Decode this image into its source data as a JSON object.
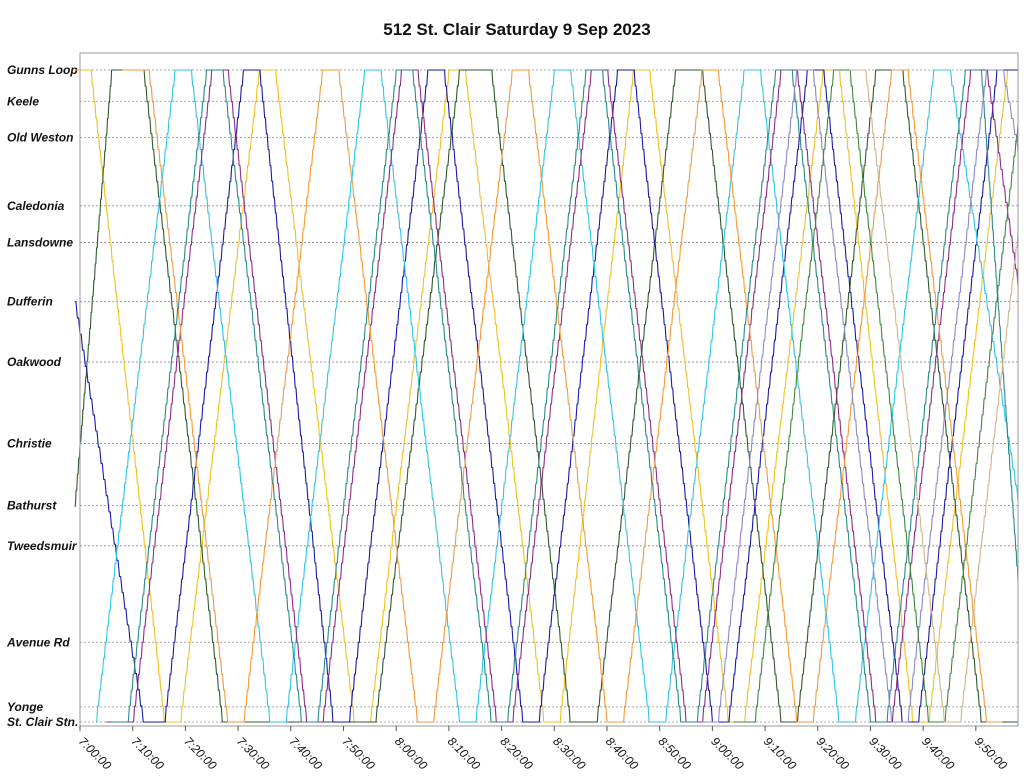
{
  "chart_data": {
    "type": "line",
    "title": "512 St. Clair Saturday 9 Sep 2023",
    "xlabel": "",
    "ylabel": "",
    "grid": "horizontal dotted lines at each stop",
    "legend": "none",
    "x_unit": "time of day (hh:mm:ss)",
    "xlim": [
      "7:00:00",
      "9:58:00"
    ],
    "x_ticks": [
      "7:00:00",
      "7:10:00",
      "7:20:00",
      "7:30:00",
      "7:40:00",
      "7:50:00",
      "8:00:00",
      "8:10:00",
      "8:20:00",
      "8:30:00",
      "8:40:00",
      "8:50:00",
      "9:00:00",
      "9:10:00",
      "9:20:00",
      "9:30:00",
      "9:40:00",
      "9:50:00"
    ],
    "stops": [
      "Gunns Loop",
      "Keele",
      "Old Weston",
      "Caledonia",
      "Lansdowne",
      "Dufferin",
      "Oakwood",
      "Christie",
      "Bathurst",
      "Tweedsmuir",
      "Avenue Rd",
      "Yonge",
      "St. Clair Stn."
    ],
    "stop_distance_km": [
      0.0,
      0.58,
      1.25,
      2.52,
      3.2,
      4.3,
      5.42,
      6.93,
      8.08,
      8.83,
      10.62,
      11.82,
      12.1
    ],
    "total_km": 12.1,
    "colors": [
      "#1a1aa8",
      "#f0c020",
      "#2ec4e6",
      "#8b2c8b",
      "#2f5a2f",
      "#f39a3a",
      "#2a8a8a",
      "#8a8ac8",
      "#3a8a3a",
      "#d2b48c"
    ],
    "series": [
      {
        "color": "#f0c020",
        "points": [
          [
            "6:59:00",
            0.0
          ],
          [
            "7:02:00",
            0.0
          ],
          [
            "7:16:00",
            12.1
          ],
          [
            "7:19:00",
            12.1
          ],
          [
            "7:34:00",
            0.0
          ],
          [
            "7:37:00",
            0.0
          ],
          [
            "7:52:00",
            12.1
          ],
          [
            "7:55:00",
            12.1
          ],
          [
            "8:10:00",
            0.0
          ],
          [
            "8:13:00",
            0.0
          ],
          [
            "8:28:00",
            12.1
          ],
          [
            "8:31:00",
            12.1
          ],
          [
            "8:45:00",
            0.0
          ],
          [
            "8:48:00",
            0.0
          ],
          [
            "9:03:00",
            12.1
          ],
          [
            "9:06:00",
            12.1
          ],
          [
            "9:21:00",
            0.0
          ],
          [
            "9:24:00",
            0.0
          ],
          [
            "9:38:00",
            12.1
          ],
          [
            "9:41:00",
            12.1
          ],
          [
            "9:56:00",
            0.0
          ],
          [
            "9:58:00",
            0.0
          ]
        ]
      },
      {
        "color": "#2f5a2f",
        "points": [
          [
            "6:59:00",
            8.1
          ],
          [
            "7:06:00",
            0.0
          ],
          [
            "7:12:00",
            0.0
          ],
          [
            "7:27:00",
            12.1
          ],
          [
            "7:32:00",
            12.1
          ],
          [
            "7:40:00",
            12.1
          ],
          [
            "7:45:00",
            12.1
          ],
          [
            "7:56:00",
            12.1
          ],
          [
            "8:12:00",
            0.0
          ],
          [
            "8:18:00",
            0.0
          ],
          [
            "8:33:00",
            12.1
          ],
          [
            "8:38:00",
            12.1
          ],
          [
            "8:53:00",
            0.0
          ],
          [
            "8:58:00",
            0.0
          ],
          [
            "9:13:00",
            12.1
          ],
          [
            "9:16:00",
            12.1
          ],
          [
            "9:31:00",
            0.0
          ],
          [
            "9:36:00",
            0.0
          ],
          [
            "9:51:00",
            12.1
          ],
          [
            "9:58:00",
            12.1
          ]
        ]
      },
      {
        "color": "#1a1aa8",
        "points": [
          [
            "6:59:00",
            4.3
          ],
          [
            "7:12:00",
            12.1
          ],
          [
            "7:16:00",
            12.1
          ],
          [
            "7:31:00",
            0.0
          ],
          [
            "7:34:00",
            0.0
          ],
          [
            "7:48:00",
            12.1
          ],
          [
            "7:51:00",
            12.1
          ],
          [
            "8:06:00",
            0.0
          ],
          [
            "8:09:00",
            0.0
          ],
          [
            "8:24:00",
            12.1
          ],
          [
            "8:27:00",
            12.1
          ],
          [
            "8:42:00",
            0.0
          ],
          [
            "8:45:00",
            0.0
          ],
          [
            "9:00:00",
            12.1
          ],
          [
            "9:03:00",
            12.1
          ],
          [
            "9:18:00",
            0.0
          ],
          [
            "9:21:00",
            0.0
          ],
          [
            "9:36:00",
            12.1
          ],
          [
            "9:39:00",
            12.1
          ],
          [
            "9:54:00",
            0.0
          ],
          [
            "9:58:00",
            0.0
          ]
        ]
      },
      {
        "color": "#2ec4e6",
        "points": [
          [
            "7:03:00",
            12.1
          ],
          [
            "7:18:00",
            0.0
          ],
          [
            "7:21:00",
            0.0
          ],
          [
            "7:36:00",
            12.1
          ],
          [
            "7:39:00",
            12.1
          ],
          [
            "7:54:00",
            0.0
          ],
          [
            "7:57:00",
            0.0
          ],
          [
            "8:12:00",
            12.1
          ],
          [
            "8:15:00",
            12.1
          ],
          [
            "8:30:00",
            0.0
          ],
          [
            "8:33:00",
            0.0
          ],
          [
            "8:48:00",
            12.1
          ],
          [
            "8:51:00",
            12.1
          ],
          [
            "9:06:00",
            0.0
          ],
          [
            "9:09:00",
            0.0
          ],
          [
            "9:24:00",
            12.1
          ],
          [
            "9:27:00",
            12.1
          ],
          [
            "9:42:00",
            0.0
          ],
          [
            "9:45:00",
            0.0
          ],
          [
            "9:58:00",
            8.0
          ]
        ]
      },
      {
        "color": "#8b2c8b",
        "points": [
          [
            "7:05:00",
            12.1
          ],
          [
            "7:10:00",
            12.1
          ],
          [
            "7:25:00",
            0.0
          ],
          [
            "7:28:00",
            0.0
          ],
          [
            "7:43:00",
            12.1
          ],
          [
            "7:46:00",
            12.1
          ],
          [
            "8:01:00",
            0.0
          ],
          [
            "8:04:00",
            0.0
          ],
          [
            "8:19:00",
            12.1
          ],
          [
            "8:22:00",
            12.1
          ],
          [
            "8:37:00",
            0.0
          ],
          [
            "8:40:00",
            0.0
          ],
          [
            "8:55:00",
            12.1
          ],
          [
            "8:58:00",
            12.1
          ],
          [
            "9:13:00",
            0.0
          ],
          [
            "9:16:00",
            0.0
          ],
          [
            "9:31:00",
            12.1
          ],
          [
            "9:34:00",
            12.1
          ],
          [
            "9:49:00",
            0.0
          ],
          [
            "9:52:00",
            0.0
          ],
          [
            "9:58:00",
            4.0
          ]
        ]
      },
      {
        "color": "#f39a3a",
        "points": [
          [
            "7:08:00",
            0.0
          ],
          [
            "7:13:00",
            0.0
          ],
          [
            "7:28:00",
            12.1
          ],
          [
            "7:31:00",
            12.1
          ],
          [
            "7:46:00",
            0.0
          ],
          [
            "7:49:00",
            0.0
          ],
          [
            "8:04:00",
            12.1
          ],
          [
            "8:07:00",
            12.1
          ],
          [
            "8:22:00",
            0.0
          ],
          [
            "8:25:00",
            0.0
          ],
          [
            "8:40:00",
            12.1
          ],
          [
            "8:43:00",
            12.1
          ],
          [
            "8:58:00",
            0.0
          ],
          [
            "9:01:00",
            0.0
          ],
          [
            "9:16:00",
            12.1
          ],
          [
            "9:19:00",
            12.1
          ],
          [
            "9:34:00",
            0.0
          ],
          [
            "9:37:00",
            0.0
          ],
          [
            "9:52:00",
            12.1
          ],
          [
            "9:55:00",
            12.1
          ]
        ]
      },
      {
        "color": "#2a8a8a",
        "points": [
          [
            "7:06:00",
            12.1
          ],
          [
            "7:09:00",
            12.1
          ],
          [
            "7:24:00",
            0.0
          ],
          [
            "7:27:00",
            0.0
          ],
          [
            "7:42:00",
            12.1
          ],
          [
            "7:45:00",
            12.1
          ],
          [
            "8:00:00",
            0.0
          ],
          [
            "8:03:00",
            0.0
          ],
          [
            "8:18:00",
            12.1
          ],
          [
            "8:21:00",
            12.1
          ],
          [
            "8:36:00",
            0.0
          ],
          [
            "8:39:00",
            0.0
          ],
          [
            "8:54:00",
            12.1
          ],
          [
            "8:57:00",
            12.1
          ],
          [
            "9:12:00",
            0.0
          ],
          [
            "9:15:00",
            0.0
          ],
          [
            "9:30:00",
            12.1
          ],
          [
            "9:33:00",
            12.1
          ],
          [
            "9:48:00",
            0.0
          ],
          [
            "9:51:00",
            0.0
          ],
          [
            "9:58:00",
            9.5
          ]
        ]
      },
      {
        "color": "#8a8ac8",
        "points": [
          [
            "8:58:00",
            12.1
          ],
          [
            "9:01:00",
            12.1
          ],
          [
            "9:16:00",
            0.0
          ],
          [
            "9:19:00",
            0.0
          ],
          [
            "9:34:00",
            12.1
          ],
          [
            "9:37:00",
            12.1
          ],
          [
            "9:52:00",
            0.0
          ],
          [
            "9:55:00",
            0.0
          ],
          [
            "9:58:00",
            1.5
          ]
        ]
      },
      {
        "color": "#3a8a3a",
        "points": [
          [
            "9:04:00",
            12.1
          ],
          [
            "9:08:00",
            12.1
          ],
          [
            "9:23:00",
            0.0
          ],
          [
            "9:26:00",
            0.0
          ],
          [
            "9:41:00",
            12.1
          ],
          [
            "9:44:00",
            12.1
          ],
          [
            "9:58:00",
            1.0
          ]
        ]
      },
      {
        "color": "#d2b48c",
        "points": [
          [
            "9:26:00",
            0.0
          ],
          [
            "9:29:00",
            0.0
          ],
          [
            "9:44:00",
            12.1
          ],
          [
            "9:47:00",
            12.1
          ],
          [
            "9:58:00",
            3.0
          ]
        ]
      }
    ]
  }
}
